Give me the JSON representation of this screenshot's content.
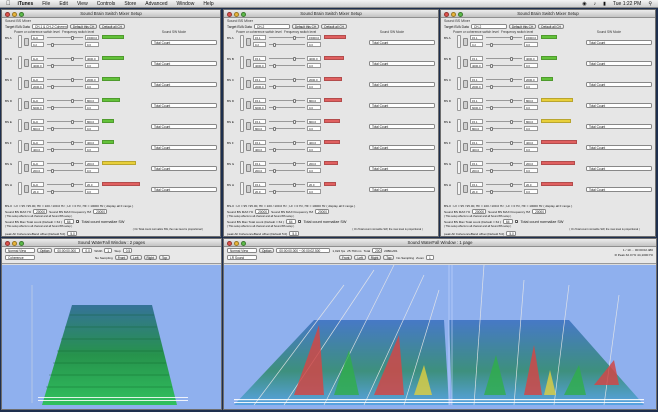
{
  "menubar": {
    "apple": "",
    "app": "iTunes",
    "items": [
      "File",
      "Edit",
      "View",
      "Controls",
      "Store",
      "Advanced",
      "Window",
      "Help"
    ],
    "clock": "Tue 1:22 PM",
    "status_icons": [
      "wifi-icon",
      "volume-icon",
      "battery-icon",
      "spotlight-icon"
    ]
  },
  "mixer_windows": [
    {
      "title": "Sound Brain Switch Mixer Setup",
      "subtitle": "Sound BS Mixer",
      "target_label": "Target BVA Data",
      "target_value": "CH-1 & CH-2 Coherence",
      "default_this": "Default this CH",
      "default_all": "Default all CH",
      "hdr_power": "Power or coherence switch level",
      "hdr_freq": "Frequency switch level",
      "hdr_mode": "Sound SW Mode",
      "channels": [
        {
          "label": "BS A",
          "f1": "1Hz",
          "f2": "0.2",
          "num1": "15000.0",
          "num2": "0.0",
          "level_color": "#63c23a",
          "level": 0.55,
          "mode": "Total Count"
        },
        {
          "label": "BS B",
          "f1": "1Hz",
          "f2": "4000.0",
          "num1": "4000.0",
          "num2": "0.0",
          "level_color": "#63c23a",
          "level": 0.55,
          "mode": "Total Count"
        },
        {
          "label": "BS C",
          "f1": "1Hz",
          "f2": "2000.0",
          "num1": "2000.0",
          "num2": "0.0",
          "level_color": "#63c23a",
          "level": 0.45,
          "mode": "Total Count"
        },
        {
          "label": "BS D",
          "f1": "1Hz",
          "f2": "6000.0",
          "num1": "800.0",
          "num2": "0.0",
          "level_color": "#63c23a",
          "level": 0.45,
          "mode": "Total Count"
        },
        {
          "label": "BS E",
          "f1": "1Hz",
          "f2": "800.0",
          "num1": "800.0",
          "num2": "0.0",
          "level_color": "#63c23a",
          "level": 0.3,
          "mode": "Total Count"
        },
        {
          "label": "BS F",
          "f1": "1Hz",
          "f2": "400.0",
          "num1": "400.0",
          "num2": "0.0",
          "level_color": "#63c23a",
          "level": 0.3,
          "mode": "Total Count"
        },
        {
          "label": "BS G",
          "f1": "1Hz",
          "f2": "200.0",
          "num1": "200.0",
          "num2": "0.0",
          "level_color": "#e8cf3a",
          "level": 0.85,
          "mode": "Total Count"
        },
        {
          "label": "BS H",
          "f1": "1Hz",
          "f2": "20.0",
          "num1": "20.0",
          "num2": "0.0",
          "level_color": "#e06060",
          "level": 0.95,
          "mode": "Total Count"
        }
      ],
      "footer1": "BS-0 : LV = 95 / 95.00, HF = 100 / 100.0 Hz ; LF = 0 Hz, HF = 10000 Hz ( display all F range )",
      "max_label": "Sound BS MAX Hz",
      "max_value": "20000",
      "max_freq_label": "Sound BS MAX Frequency HZ",
      "max_freq_value": "20000",
      "note1": "( This setup effects to all channel and all Sound BS setup )",
      "total_label": "Sound BS Max Total count (Default = 64 )",
      "total_value": "64",
      "normalize": "Total count normalize SW",
      "note2": "( This setup effects to all channel and all Sound BS setup )",
      "note3": "( On Total count normalize SW, the max level is proportional )",
      "peak_label": "peak All CoherenceBand offset (Default 5.0)",
      "peak_value": "5.0",
      "note4": "( Use for Sensor Dumper Mode : Sensit L & R & SIG Coherence Band (Brain Wave) default setup only )"
    },
    {
      "title": "Sound Brain Switch Mixer Setup",
      "subtitle": "Sound BS Mixer",
      "target_label": "Target BVA Data",
      "target_value": "CH-2",
      "default_this": "Default this CH",
      "default_all": "Default all CH",
      "hdr_power": "Power or coherence switch level",
      "hdr_freq": "Frequency switch level",
      "hdr_mode": "Sound SW Mode",
      "channels": [
        {
          "label": "BS A",
          "f1": "15.1",
          "f2": "0.2",
          "num1": "15000.0",
          "num2": "0.0",
          "level_color": "#e06060",
          "level": 0.55,
          "mode": "Total Count"
        },
        {
          "label": "BS B",
          "f1": "15.1",
          "f2": "4000.0",
          "num1": "4000.0",
          "num2": "0.0",
          "level_color": "#e06060",
          "level": 0.5,
          "mode": "Total Count"
        },
        {
          "label": "BS C",
          "f1": "15.1",
          "f2": "2000.0",
          "num1": "2000.0",
          "num2": "0.0",
          "level_color": "#e06060",
          "level": 0.45,
          "mode": "Total Count"
        },
        {
          "label": "BS D",
          "f1": "15.1",
          "f2": "6000.0",
          "num1": "800.0",
          "num2": "0.0",
          "level_color": "#e06060",
          "level": 0.45,
          "mode": "Total Count"
        },
        {
          "label": "BS E",
          "f1": "15.1",
          "f2": "800.0",
          "num1": "800.0",
          "num2": "0.0",
          "level_color": "#e06060",
          "level": 0.4,
          "mode": "Total Count"
        },
        {
          "label": "BS F",
          "f1": "15.1",
          "f2": "400.0",
          "num1": "400.0",
          "num2": "0.0",
          "level_color": "#e06060",
          "level": 0.4,
          "mode": "Total Count"
        },
        {
          "label": "BS G",
          "f1": "15.1",
          "f2": "200.0",
          "num1": "200.0",
          "num2": "0.0",
          "level_color": "#e06060",
          "level": 0.35,
          "mode": "Total Count"
        },
        {
          "label": "BS H",
          "f1": "15.1",
          "f2": "20.0",
          "num1": "20.0",
          "num2": "0.0",
          "level_color": "#e06060",
          "level": 0.3,
          "mode": "Total Count"
        }
      ],
      "footer1": "BS-0 : LV = 95 / 95.00, HF = 100 / 100.0 Hz ; LF = 0 Hz, HF = 10000 Hz ( display all F range )",
      "max_label": "Sound BS MAX Hz",
      "max_value": "20000",
      "max_freq_label": "Sound BS MAX Frequency HZ",
      "max_freq_value": "20000",
      "note1": "( This setup effects to all channel and all Sound BS setup )",
      "total_label": "Sound BS Max Total count (Default = 64 )",
      "total_value": "64",
      "normalize": "Total count normalize SW",
      "note2": "( This setup effects to all channel and all Sound BS setup )",
      "note3": "( On Total count normalize SW, the max level is proportional )",
      "peak_label": "peak All CoherenceBand offset (Default 5.0)",
      "peak_value": "5.0",
      "note4": "( Use for Sensor Dumper Mode : Sensit L & R & SIG Coherence Band (Brain Wave) default setup only )"
    },
    {
      "title": "Sound Brain Switch Mixer Setup",
      "subtitle": "Sound BS Mixer",
      "target_label": "Target BVA Data",
      "target_value": "CH-2",
      "default_this": "Default this CH",
      "default_all": "Default all CH",
      "hdr_power": "Power or coherence switch level",
      "hdr_freq": "Frequency switch level",
      "hdr_mode": "Sound SW Mode",
      "channels": [
        {
          "label": "BS A",
          "f1": "15.1",
          "f2": "0.2",
          "num1": "15000.0",
          "num2": "0.0",
          "level_color": "#63c23a",
          "level": 0.4,
          "mode": "Total Count"
        },
        {
          "label": "BS B",
          "f1": "15.1",
          "f2": "4000.0",
          "num1": "4000.0",
          "num2": "0.0",
          "level_color": "#63c23a",
          "level": 0.4,
          "mode": "Total Count"
        },
        {
          "label": "BS C",
          "f1": "15.1",
          "f2": "2000.0",
          "num1": "2000.0",
          "num2": "0.0",
          "level_color": "#63c23a",
          "level": 0.3,
          "mode": "Total Count"
        },
        {
          "label": "BS D",
          "f1": "15.1",
          "f2": "6000.0",
          "num1": "800.0",
          "num2": "0.0",
          "level_color": "#e8cf3a",
          "level": 0.8,
          "mode": "Total Count"
        },
        {
          "label": "BS E",
          "f1": "15.1",
          "f2": "800.0",
          "num1": "800.0",
          "num2": "0.0",
          "level_color": "#e8cf3a",
          "level": 0.75,
          "mode": "Total Count"
        },
        {
          "label": "BS F",
          "f1": "15.1",
          "f2": "400.0",
          "num1": "400.0",
          "num2": "0.0",
          "level_color": "#e06060",
          "level": 0.9,
          "mode": "Total Count"
        },
        {
          "label": "BS G",
          "f1": "15.1",
          "f2": "200.0",
          "num1": "200.0",
          "num2": "0.0",
          "level_color": "#e06060",
          "level": 0.85,
          "mode": "Total Count"
        },
        {
          "label": "BS H",
          "f1": "15.1",
          "f2": "20.0",
          "num1": "20.0",
          "num2": "0.0",
          "level_color": "#e06060",
          "level": 0.8,
          "mode": "Total Count"
        }
      ],
      "footer1": "BS-0 : LV = 95 / 95.00, HF = 100 / 100.0 Hz ; LF = 0 Hz, HF = 10000 Hz ( display all F range )",
      "max_label": "Sound BS MAX Hz",
      "max_value": "20000",
      "max_freq_label": "Sound BS MAX Frequency HZ",
      "max_freq_value": "20000",
      "note1": "( This setup effects to all channel and all Sound BS setup )",
      "total_label": "Sound BS Max Total count (Default = 64 )",
      "total_value": "64",
      "normalize": "Total count normalize SW",
      "note2": "( This setup effects to all channel and all Sound BS setup )",
      "note3": "( On Total count normalize SW, the max level is proportional )",
      "peak_label": "peak All CoherenceBand offset (Default 5.0)",
      "peak_value": "5.0",
      "note4": "( Use for Sensor Dumper Mode : Sensit L & R & SIG Coherence Band (Brain Wave) default setup only )"
    }
  ],
  "waterfall_small": {
    "title": "Sound WaterFall Window : 2 pages",
    "mode": "Normal View",
    "view": "Coherence",
    "option_btn": "Option",
    "time_range": "00:00:00.000",
    "dots": "0.0",
    "width_label": "Width",
    "width_value": "1",
    "step_label": "Step",
    "step_value": "0.5",
    "nosampling": "No Sampling",
    "views": [
      "Front",
      "Left",
      "Right",
      "Top"
    ]
  },
  "waterfall_big": {
    "title": "Sound WaterFall Window : 1 page",
    "mode": "Normal View",
    "view": "LR Sound",
    "option_btn": "Option",
    "time_range": "00:00:00.000 ~ 00:00:02.500",
    "fps": "1,024 fps",
    "ms": "25.760 ms",
    "total": "Total",
    "total_value": "200",
    "bits": "20Bits/R1",
    "views": [
      "Front",
      "Left",
      "Right",
      "Top"
    ],
    "nosampling": "No Sampling",
    "zoom_label": "Zoom",
    "zoom_value": "1",
    "right_readout": "1 / 10 ... 00:00:02.480",
    "right_readout2": "R Peak   32.0  Hz   44,1000 Hz"
  }
}
